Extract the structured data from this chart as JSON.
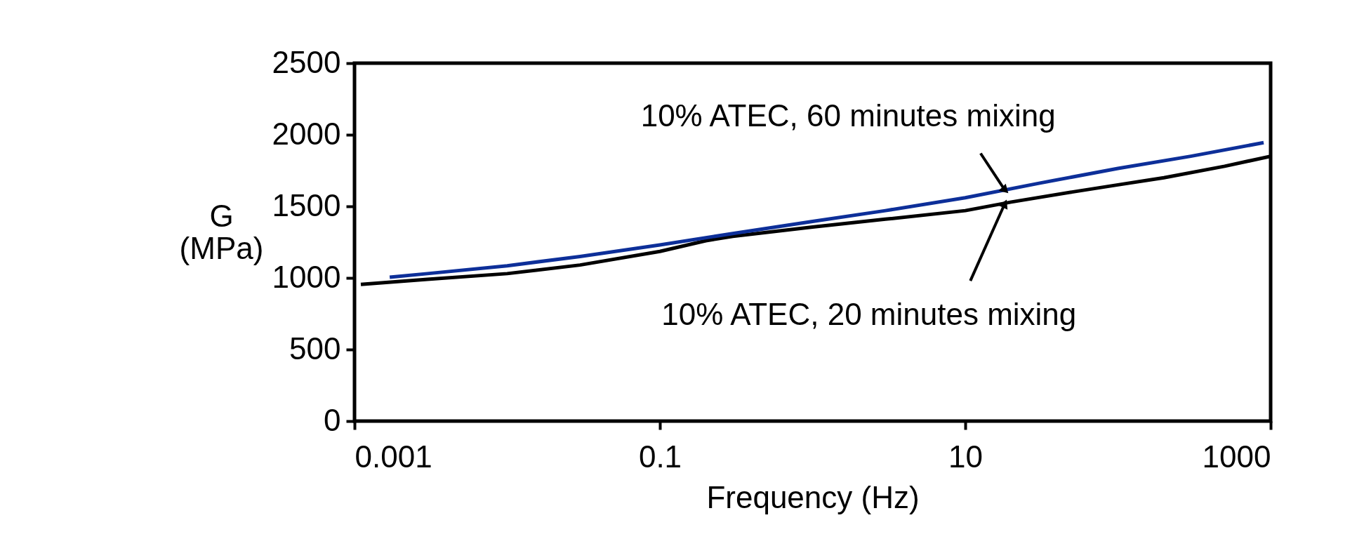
{
  "chart_data": {
    "type": "line",
    "xlabel": "Frequency (Hz)",
    "ylabel": "G (MPa)",
    "log": "x",
    "xlim": [
      0.001,
      1000
    ],
    "xticks": [
      0.001,
      0.1,
      10,
      1000
    ],
    "ylim": [
      0,
      2500
    ],
    "yticks": [
      0,
      500,
      1000,
      1500,
      2000,
      2500
    ],
    "grid": false,
    "legend": false,
    "marker": "none",
    "line_style": "solid",
    "series": [
      {
        "color": "#000000",
        "x": [
          0.0011,
          0.003,
          0.01,
          0.03,
          0.1,
          0.2,
          0.3,
          1,
          3,
          10,
          20,
          50,
          100,
          200,
          500,
          1000
        ],
        "values": [
          955,
          990,
          1030,
          1090,
          1185,
          1260,
          1290,
          1355,
          1410,
          1470,
          1530,
          1600,
          1650,
          1700,
          1780,
          1850
        ]
      },
      {
        "color": "#0d2f99",
        "x": [
          0.0017,
          0.003,
          0.01,
          0.03,
          0.1,
          0.3,
          1,
          3,
          10,
          30,
          100,
          300,
          900
        ],
        "values": [
          1005,
          1030,
          1085,
          1150,
          1230,
          1310,
          1395,
          1470,
          1560,
          1660,
          1765,
          1850,
          1945
        ]
      }
    ],
    "annotations": [
      {
        "text": "10% ATEC, 60 minutes mixing",
        "x": 18,
        "y": 1620
      },
      {
        "text": "10% ATEC, 20 minutes mixing",
        "x": 18,
        "y": 1510
      }
    ]
  }
}
